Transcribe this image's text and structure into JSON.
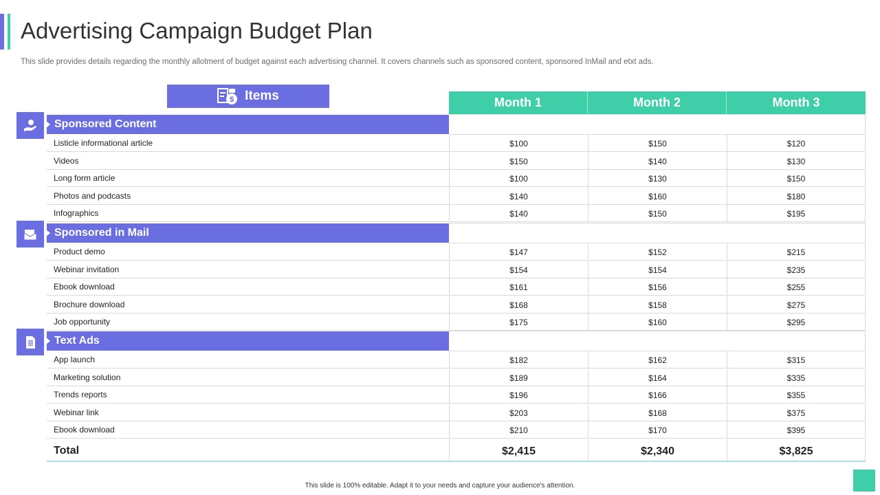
{
  "title": "Advertising Campaign Budget Plan",
  "subtitle": "This slide provides details regarding the monthly allotment of budget against each advertising channel. It covers channels such as sponsored content, sponsored InMail and etxt ads.",
  "items_header": "Items",
  "months": [
    "Month 1",
    "Month 2",
    "Month 3"
  ],
  "sections": [
    {
      "name": "Sponsored Content",
      "icon": "hand-money-icon",
      "rows": [
        {
          "label": "Listicle informational article",
          "values": [
            "$100",
            "$150",
            "$120"
          ]
        },
        {
          "label": "Videos",
          "values": [
            "$150",
            "$140",
            "$130"
          ]
        },
        {
          "label": "Long form article",
          "values": [
            "$100",
            "$130",
            "$150"
          ]
        },
        {
          "label": "Photos and podcasts",
          "values": [
            "$140",
            "$160",
            "$180"
          ]
        },
        {
          "label": "Infographics",
          "values": [
            "$140",
            "$150",
            "$195"
          ]
        }
      ]
    },
    {
      "name": "Sponsored in Mail",
      "icon": "mail-icon",
      "rows": [
        {
          "label": "Product demo",
          "values": [
            "$147",
            "$152",
            "$215"
          ]
        },
        {
          "label": "Webinar invitation",
          "values": [
            "$154",
            "$154",
            "$235"
          ]
        },
        {
          "label": "Ebook download",
          "values": [
            "$161",
            "$156",
            "$255"
          ]
        },
        {
          "label": "Brochure download",
          "values": [
            "$168",
            "$158",
            "$275"
          ]
        },
        {
          "label": "Job opportunity",
          "values": [
            "$175",
            "$160",
            "$295"
          ]
        }
      ]
    },
    {
      "name": "Text Ads",
      "icon": "document-icon",
      "rows": [
        {
          "label": "App launch",
          "values": [
            "$182",
            "$162",
            "$315"
          ]
        },
        {
          "label": "Marketing solution",
          "values": [
            "$189",
            "$164",
            "$335"
          ]
        },
        {
          "label": "Trends reports",
          "values": [
            "$196",
            "$166",
            "$355"
          ]
        },
        {
          "label": "Webinar link",
          "values": [
            "$203",
            "$168",
            "$375"
          ]
        },
        {
          "label": "Ebook download",
          "values": [
            "$210",
            "$170",
            "$395"
          ]
        }
      ]
    }
  ],
  "total": {
    "label": "Total",
    "values": [
      "$2,415",
      "$2,340",
      "$3,825"
    ]
  },
  "footer": "This slide is 100% editable.  Adapt it to your needs and capture your audience's attention.",
  "colors": {
    "primary": "#6a6ee0",
    "secondary": "#3ecfa8"
  }
}
